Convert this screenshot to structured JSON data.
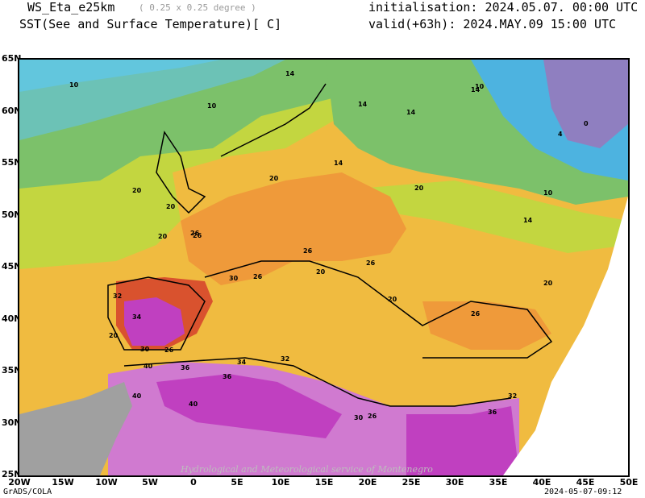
{
  "header": {
    "model": "WS_Eta_e25km",
    "resolution": "( 0.25 x 0.25 degree )",
    "variable": "SST(See and Surface Temperature)[ C]",
    "init": "initialisation: 2024.05.07. 00:00 UTC",
    "valid": "valid(+63h): 2024.MAY.09 15:00 UTC"
  },
  "axes": {
    "y_ticks": [
      "65N",
      "60N",
      "55N",
      "50N",
      "45N",
      "40N",
      "35N",
      "30N",
      "25N"
    ],
    "x_ticks": [
      "20W",
      "15W",
      "10W",
      "5W",
      "0",
      "5E",
      "10E",
      "15E",
      "20E",
      "25E",
      "30E",
      "35E",
      "40E",
      "45E",
      "50E"
    ]
  },
  "map": {
    "watermark": "Hydrological and Meteorological service of Montenegro",
    "contour_labels": [
      {
        "t": "10"
      },
      {
        "t": "10"
      },
      {
        "t": "14"
      },
      {
        "t": "14"
      },
      {
        "t": "14"
      },
      {
        "t": "14"
      },
      {
        "t": "10"
      },
      {
        "t": "0"
      },
      {
        "t": "4"
      },
      {
        "t": "10"
      },
      {
        "t": "20"
      },
      {
        "t": "20"
      },
      {
        "t": "14"
      },
      {
        "t": "26"
      },
      {
        "t": "20"
      },
      {
        "t": "20"
      },
      {
        "t": "14"
      },
      {
        "t": "26"
      },
      {
        "t": "20"
      },
      {
        "t": "26"
      },
      {
        "t": "26"
      },
      {
        "t": "20"
      },
      {
        "t": "30"
      },
      {
        "t": "26"
      },
      {
        "t": "32"
      },
      {
        "t": "34"
      },
      {
        "t": "20"
      },
      {
        "t": "30"
      },
      {
        "t": "26"
      },
      {
        "t": "36"
      },
      {
        "t": "40"
      },
      {
        "t": "36"
      },
      {
        "t": "34"
      },
      {
        "t": "40"
      },
      {
        "t": "40"
      },
      {
        "t": "32"
      },
      {
        "t": "30"
      },
      {
        "t": "26"
      },
      {
        "t": "20"
      },
      {
        "t": "26"
      },
      {
        "t": "32"
      },
      {
        "t": "36"
      },
      {
        "t": "20"
      }
    ],
    "colors": {
      "violet": "#8f7fc0",
      "blue": "#4db3e0",
      "cyan": "#62c6dd",
      "teal": "#6cc2b6",
      "green": "#7cc16a",
      "lime": "#c3d640",
      "yellow": "#ecd93c",
      "gold": "#f0bb40",
      "orange": "#ef9a3a",
      "red": "#d9522e",
      "magenta": "#c040c0",
      "pink": "#d07ad0",
      "grey": "#a0a0a0",
      "white": "#ffffff"
    }
  },
  "footer": {
    "left": "GrADS/COLA",
    "right": "2024-05-07-09:12"
  }
}
